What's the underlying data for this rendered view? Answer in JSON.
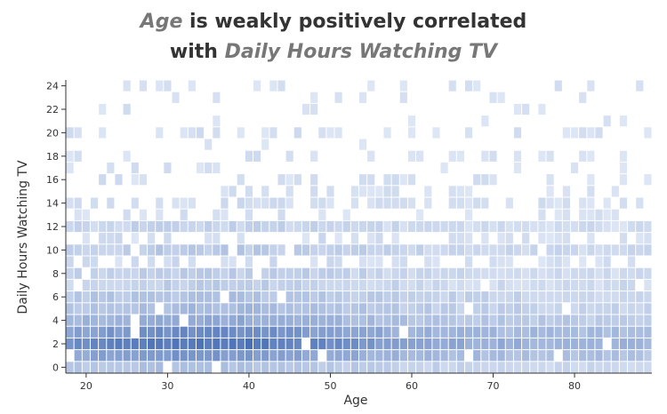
{
  "title": {
    "line1_highlight": "Age",
    "line1_rest": " is weakly positively correlated",
    "line2_prefix": "with ",
    "line2_highlight": "Daily Hours Watching TV"
  },
  "chart_data": {
    "type": "heatmap",
    "xlabel": "Age",
    "ylabel": "Daily Hours Watching TV",
    "xlim": [
      18,
      89
    ],
    "ylim": [
      0,
      24
    ],
    "x_ticks": [
      20,
      30,
      40,
      50,
      60,
      70,
      80
    ],
    "y_ticks": [
      0,
      2,
      4,
      6,
      8,
      10,
      12,
      14,
      16,
      18,
      20,
      22,
      24
    ],
    "x_bins": [
      18,
      19,
      20,
      21,
      22,
      23,
      24,
      25,
      26,
      27,
      28,
      29,
      30,
      31,
      32,
      33,
      34,
      35,
      36,
      37,
      38,
      39,
      40,
      41,
      42,
      43,
      44,
      45,
      46,
      47,
      48,
      49,
      50,
      51,
      52,
      53,
      54,
      55,
      56,
      57,
      58,
      59,
      60,
      61,
      62,
      63,
      64,
      65,
      66,
      67,
      68,
      69,
      70,
      71,
      72,
      73,
      74,
      75,
      76,
      77,
      78,
      79,
      80,
      81,
      82,
      83,
      84,
      85,
      86,
      87,
      88,
      89
    ],
    "y_bins": [
      0,
      1,
      2,
      3,
      4,
      5,
      6,
      7,
      8,
      9,
      10,
      11,
      12,
      13,
      14,
      15,
      16,
      17,
      18,
      19,
      20,
      21,
      22,
      23,
      24
    ],
    "count_profile": {
      "row_base": [
        0.25,
        0.55,
        0.78,
        0.62,
        0.42,
        0.3,
        0.25,
        0.16,
        0.17,
        0.07,
        0.19,
        0.06,
        0.13,
        0.03,
        0.07,
        0.04,
        0.04,
        0.02,
        0.03,
        0.01,
        0.04,
        0.01,
        0.02,
        0.01,
        0.03
      ],
      "age_peak": 35,
      "age_spread": 16
    },
    "color_low": "#dde6f5",
    "color_high": "#2a56a8"
  }
}
